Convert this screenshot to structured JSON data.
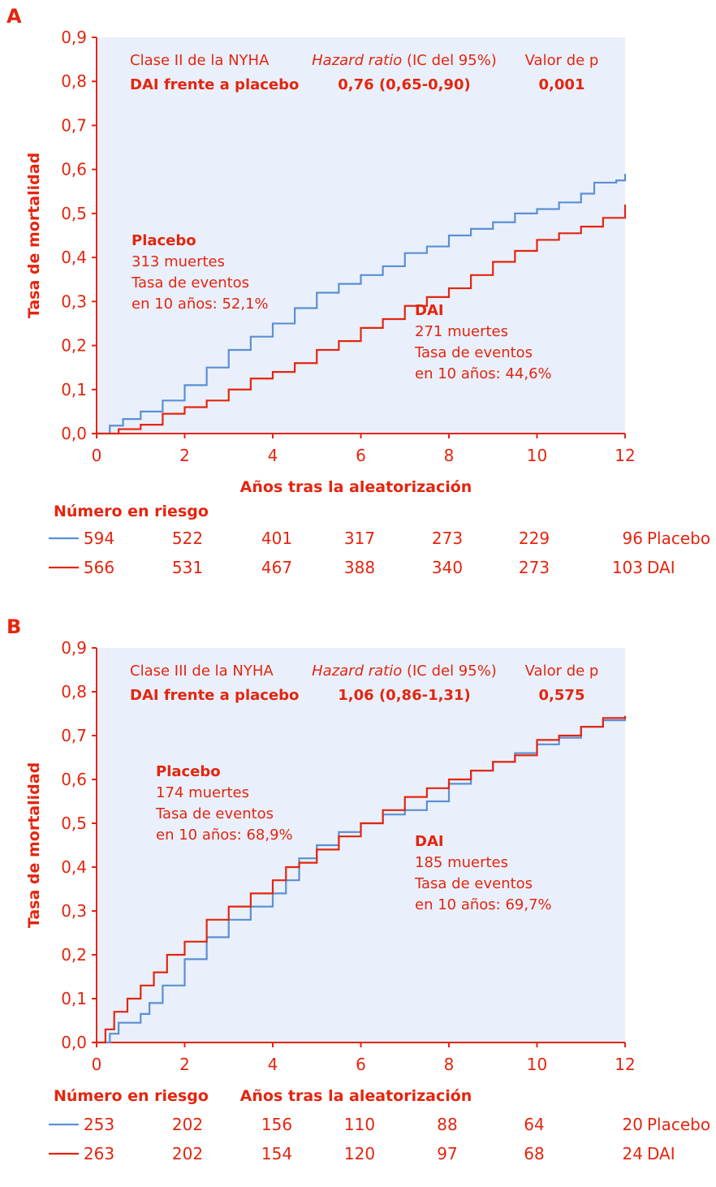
{
  "colors": {
    "red": "#e4250f",
    "blue": "#5b8fd4",
    "panel_bg": "#e9f0fb",
    "axis": "#e4250f"
  },
  "chart_data": [
    {
      "type": "line",
      "panel_label": "A",
      "xlabel": "Años tras la aleatorización",
      "ylabel": "Tasa de mortalidad",
      "xlim": [
        0,
        12
      ],
      "ylim": [
        0,
        0.9
      ],
      "x_ticks": [
        "0",
        "2",
        "4",
        "6",
        "8",
        "10",
        "12"
      ],
      "y_ticks": [
        "0,0",
        "0,1",
        "0,2",
        "0,3",
        "0,4",
        "0,5",
        "0,6",
        "0,7",
        "0,8",
        "0,9"
      ],
      "stats": {
        "group": "Clase II de la NYHA",
        "comparison": "DAI frente a placebo",
        "hr_header_italic": "Hazard ratio",
        "hr_header_rest": " (IC del 95%)",
        "hr_value": "0,76 (0,65-0,90)",
        "p_header": "Valor de p",
        "p_value": "0,001"
      },
      "series": [
        {
          "name": "Placebo",
          "color": "#5b8fd4",
          "x": [
            0,
            0.3,
            0.6,
            1,
            1.5,
            2,
            2.5,
            3,
            3.5,
            4,
            4.5,
            5,
            5.5,
            6,
            6.5,
            7,
            7.5,
            8,
            8.5,
            9,
            9.5,
            10,
            10.5,
            11,
            11.3,
            11.8,
            12
          ],
          "y": [
            0,
            0.018,
            0.033,
            0.05,
            0.075,
            0.11,
            0.15,
            0.19,
            0.22,
            0.25,
            0.285,
            0.32,
            0.34,
            0.36,
            0.38,
            0.41,
            0.425,
            0.45,
            0.465,
            0.48,
            0.5,
            0.51,
            0.525,
            0.545,
            0.57,
            0.575,
            0.59
          ]
        },
        {
          "name": "DAI",
          "color": "#e4250f",
          "x": [
            0,
            0.5,
            1,
            1.5,
            2,
            2.5,
            3,
            3.5,
            4,
            4.5,
            5,
            5.5,
            6,
            6.5,
            7,
            7.5,
            8,
            8.5,
            9,
            9.5,
            10,
            10.5,
            11,
            11.5,
            12
          ],
          "y": [
            0,
            0.01,
            0.02,
            0.045,
            0.06,
            0.075,
            0.1,
            0.125,
            0.14,
            0.16,
            0.19,
            0.21,
            0.24,
            0.26,
            0.29,
            0.31,
            0.33,
            0.36,
            0.39,
            0.415,
            0.44,
            0.455,
            0.47,
            0.49,
            0.52
          ]
        }
      ],
      "annotations": [
        {
          "title": "Placebo",
          "lines": [
            "313 muertes",
            "Tasa de eventos",
            "en 10 años: 52,1%"
          ]
        },
        {
          "title": "DAI",
          "lines": [
            "271 muertes",
            "Tasa de eventos",
            "en 10 años: 44,6%"
          ]
        }
      ],
      "risk_table": {
        "title": "Número en riesgo",
        "rows": [
          {
            "name": "Placebo",
            "color": "#5b8fd4",
            "values": [
              "594",
              "522",
              "401",
              "317",
              "273",
              "229",
              "96"
            ]
          },
          {
            "name": "DAI",
            "color": "#e4250f",
            "values": [
              "566",
              "531",
              "467",
              "388",
              "340",
              "273",
              "103"
            ]
          }
        ]
      }
    },
    {
      "type": "line",
      "panel_label": "B",
      "xlabel": "Años tras la aleatorización",
      "ylabel": "Tasa de mortalidad",
      "xlim": [
        0,
        12
      ],
      "ylim": [
        0,
        0.9
      ],
      "x_ticks": [
        "0",
        "2",
        "4",
        "6",
        "8",
        "10",
        "12"
      ],
      "y_ticks": [
        "0,0",
        "0,1",
        "0,2",
        "0,3",
        "0,4",
        "0,5",
        "0,6",
        "0,7",
        "0,8",
        "0,9"
      ],
      "stats": {
        "group": "Clase III de la NYHA",
        "comparison": "DAI frente a placebo",
        "hr_header_italic": "Hazard ratio",
        "hr_header_rest": " (IC del 95%)",
        "hr_value": "1,06 (0,86-1,31)",
        "p_header": "Valor de p",
        "p_value": "0,575"
      },
      "series": [
        {
          "name": "Placebo",
          "color": "#5b8fd4",
          "x": [
            0,
            0.3,
            0.5,
            1,
            1.2,
            1.5,
            2,
            2.5,
            3,
            3.5,
            4,
            4.3,
            4.6,
            5,
            5.5,
            6,
            6.5,
            7,
            7.5,
            8,
            8.5,
            9,
            9.5,
            10,
            10.5,
            11,
            11.5,
            12
          ],
          "y": [
            0,
            0.02,
            0.045,
            0.065,
            0.09,
            0.13,
            0.19,
            0.24,
            0.28,
            0.31,
            0.34,
            0.37,
            0.42,
            0.45,
            0.48,
            0.5,
            0.52,
            0.53,
            0.55,
            0.59,
            0.62,
            0.64,
            0.66,
            0.68,
            0.695,
            0.72,
            0.735,
            0.74
          ]
        },
        {
          "name": "DAI",
          "color": "#e4250f",
          "x": [
            0,
            0.2,
            0.4,
            0.7,
            1,
            1.3,
            1.6,
            2,
            2.5,
            3,
            3.5,
            4,
            4.3,
            4.6,
            5,
            5.5,
            6,
            6.5,
            7,
            7.5,
            8,
            8.5,
            9,
            9.5,
            10,
            10.5,
            11,
            11.5,
            12
          ],
          "y": [
            0,
            0.03,
            0.07,
            0.1,
            0.13,
            0.16,
            0.2,
            0.23,
            0.28,
            0.31,
            0.34,
            0.37,
            0.4,
            0.41,
            0.44,
            0.47,
            0.5,
            0.53,
            0.56,
            0.58,
            0.6,
            0.62,
            0.64,
            0.655,
            0.69,
            0.7,
            0.72,
            0.74,
            0.745
          ]
        }
      ],
      "annotations": [
        {
          "title": "Placebo",
          "lines": [
            "174 muertes",
            "Tasa de eventos",
            "en 10 años: 68,9%"
          ]
        },
        {
          "title": "DAI",
          "lines": [
            "185 muertes",
            "Tasa de eventos",
            "en 10 años: 69,7%"
          ]
        }
      ],
      "risk_table": {
        "title": "Número en riesgo",
        "rows": [
          {
            "name": "Placebo",
            "color": "#5b8fd4",
            "values": [
              "253",
              "202",
              "156",
              "110",
              "88",
              "64",
              "20"
            ]
          },
          {
            "name": "DAI",
            "color": "#e4250f",
            "values": [
              "263",
              "202",
              "154",
              "120",
              "97",
              "68",
              "24"
            ]
          }
        ]
      }
    }
  ]
}
